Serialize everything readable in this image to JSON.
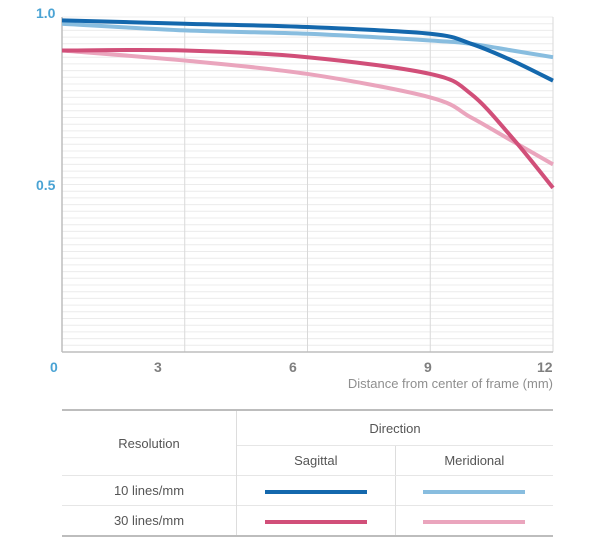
{
  "chart_data": {
    "type": "line",
    "xlabel": "Distance from center of frame (mm)",
    "ylabel": "",
    "xlim": [
      0,
      12
    ],
    "ylim": [
      0,
      1.0
    ],
    "x_ticks": [
      "0",
      "3",
      "6",
      "9",
      "12"
    ],
    "y_ticks": [
      "0.5",
      "1.0"
    ],
    "series": [
      {
        "name": "10 lines/mm Sagittal",
        "color": "#1468ad",
        "x": [
          0,
          3,
          6,
          9,
          10,
          11,
          12
        ],
        "y": [
          0.99,
          0.98,
          0.97,
          0.95,
          0.92,
          0.87,
          0.81
        ]
      },
      {
        "name": "10 lines/mm Meridional",
        "color": "#88bddf",
        "x": [
          0,
          3,
          6,
          9,
          10,
          11,
          12
        ],
        "y": [
          0.98,
          0.96,
          0.95,
          0.93,
          0.92,
          0.9,
          0.88
        ]
      },
      {
        "name": "30 lines/mm Sagittal",
        "color": "#d14f79",
        "x": [
          0,
          3,
          6,
          9,
          10,
          11,
          12
        ],
        "y": [
          0.9,
          0.9,
          0.88,
          0.83,
          0.77,
          0.64,
          0.49
        ]
      },
      {
        "name": "30 lines/mm Meridional",
        "color": "#eaa5bd",
        "x": [
          0,
          3,
          6,
          9,
          10,
          11,
          12
        ],
        "y": [
          0.9,
          0.87,
          0.83,
          0.76,
          0.7,
          0.63,
          0.56
        ]
      }
    ]
  },
  "legend": {
    "resolution_label": "Resolution",
    "direction_label": "Direction",
    "sagittal_label": "Sagittal",
    "meridional_label": "Meridional",
    "rows": [
      {
        "label": "10 lines/mm",
        "sagittal_color": "#1468ad",
        "meridional_color": "#88bddf"
      },
      {
        "label": "30 lines/mm",
        "sagittal_color": "#d14f79",
        "meridional_color": "#eaa5bd"
      }
    ]
  }
}
